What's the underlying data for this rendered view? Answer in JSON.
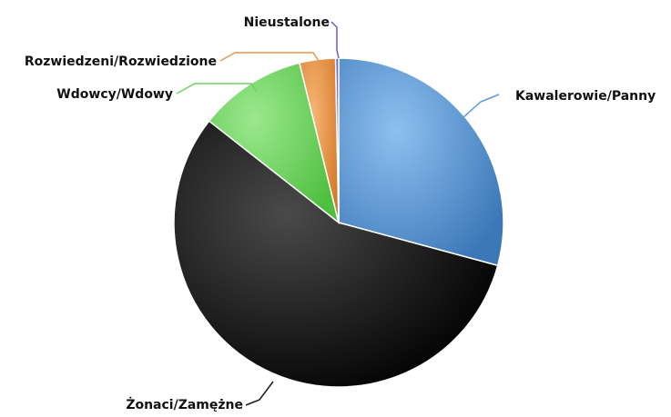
{
  "chart_data": {
    "type": "pie",
    "title": "",
    "start_angle_deg": 0,
    "direction": "clockwise",
    "slices": [
      {
        "label": "Kawalerowie/Panny",
        "value": 29.0,
        "color": "#5b9bd5"
      },
      {
        "label": "Żonaci/Zamężne",
        "value": 56.0,
        "color": "#1a1a1a"
      },
      {
        "label": "Wdowcy/Wdowy",
        "value": 10.5,
        "color": "#6dd35f"
      },
      {
        "label": "Rozwiedzeni/Rozwiedzione",
        "value": 3.5,
        "color": "#e8964a"
      },
      {
        "label": "Nieustalone",
        "value": 0.3,
        "color": "#6a5acd"
      }
    ]
  }
}
